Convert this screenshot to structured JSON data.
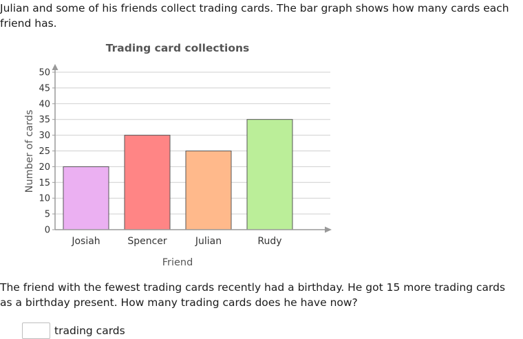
{
  "intro_text": "Julian and some of his friends collect trading cards. The bar graph shows how many cards each friend has.",
  "question_text": "The friend with the fewest trading cards recently had a birthday. He got 15 more trading cards as a birthday present. How many trading cards does he have now?",
  "answer": {
    "value": "",
    "unit": "trading cards"
  },
  "chart_data": {
    "type": "bar",
    "title": "Trading card collections",
    "xlabel": "Friend",
    "ylabel": "Number of cards",
    "categories": [
      "Josiah",
      "Spencer",
      "Julian",
      "Rudy"
    ],
    "values": [
      20,
      30,
      25,
      35
    ],
    "colors": [
      "#ebb0f2",
      "#ff8585",
      "#ffb98b",
      "#bbee99"
    ],
    "ylim": [
      0,
      50
    ],
    "yticks": [
      0,
      5,
      10,
      15,
      20,
      25,
      30,
      35,
      40,
      45,
      50
    ],
    "grid": true,
    "legend": "none"
  }
}
